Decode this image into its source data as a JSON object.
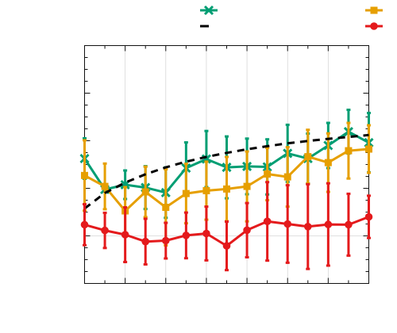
{
  "chart_data": {
    "type": "line",
    "title": "",
    "xlabel": "",
    "ylabel": "",
    "grid": true,
    "legend_position": "top",
    "x": [
      0,
      1,
      2,
      3,
      4,
      5,
      6,
      7,
      8,
      9,
      10,
      11,
      12,
      13,
      14
    ],
    "xlim": [
      0,
      14
    ],
    "ylim": [
      0,
      100
    ],
    "x_grid_step": 2,
    "y_grid": [
      20
    ],
    "minor_x_step": 1,
    "minor_y_step": 5,
    "series": [
      {
        "name": "",
        "color": "#009e73",
        "marker": "x-icon",
        "line_style": "solid",
        "values": [
          52.5,
          39.5,
          41.5,
          40.3,
          38.2,
          48.5,
          52.3,
          48.8,
          49.2,
          49.0,
          54.7,
          52.5,
          58.0,
          63.8,
          59.2
        ],
        "errors": [
          8.5,
          0.0,
          6.0,
          9.0,
          10.6,
          10.8,
          11.8,
          13.0,
          11.7,
          11.6,
          12.0,
          10.5,
          9.5,
          9.2,
          12.5
        ]
      },
      {
        "name": "",
        "color": "#e69f00",
        "marker": "square-icon",
        "line_style": "solid",
        "values": [
          45.4,
          40.8,
          30.5,
          38.5,
          32.0,
          37.8,
          39.0,
          39.7,
          40.8,
          46.0,
          44.8,
          53.3,
          50.8,
          55.8,
          56.5
        ],
        "errors": [
          14.8,
          9.6,
          10.0,
          10.6,
          16.0,
          12.5,
          12.2,
          13.5,
          14.7,
          11.0,
          12.5,
          11.3,
          12.3,
          11.7,
          10.0
        ]
      },
      {
        "name": "",
        "color": "#000000",
        "marker": "none",
        "line_style": "dashed",
        "values": [
          31.5,
          38.0,
          42.4,
          45.9,
          48.8,
          51.2,
          53.2,
          54.9,
          56.4,
          57.7,
          58.9,
          59.9,
          60.8,
          61.6,
          62.4
        ],
        "errors": []
      },
      {
        "name": "",
        "color": "#e41a1c",
        "marker": "circle-icon",
        "line_style": "solid",
        "values": [
          24.7,
          22.3,
          20.5,
          17.6,
          18.0,
          20.2,
          21.0,
          15.8,
          22.4,
          26.1,
          25.0,
          23.9,
          24.8,
          24.7,
          28.0
        ],
        "errors": [
          8.6,
          7.4,
          11.5,
          9.6,
          7.5,
          9.6,
          11.3,
          10.2,
          11.4,
          16.5,
          16.3,
          17.8,
          17.3,
          13.0,
          8.9
        ]
      }
    ]
  }
}
